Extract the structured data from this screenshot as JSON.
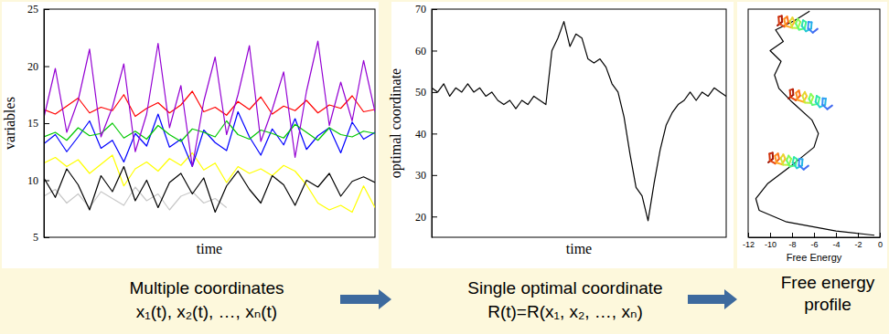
{
  "chart_data": [
    {
      "type": "line",
      "xlabel": "time",
      "ylabel": "variables",
      "tick_labels": "y",
      "x": [
        0,
        1,
        2,
        3,
        4,
        5,
        6,
        7,
        8,
        9,
        10,
        11,
        12,
        13,
        14,
        15,
        16,
        17,
        18,
        19,
        20,
        21,
        22,
        23,
        24,
        25,
        26,
        27,
        28,
        29
      ],
      "xlim": [
        0,
        29
      ],
      "ylim": [
        5,
        25
      ],
      "yticks": [
        5,
        10,
        15,
        20,
        25
      ],
      "series": [
        {
          "color": "#c8c8c8",
          "values": [
            8.6,
            9.2,
            8.0,
            8.8,
            7.6,
            9.0,
            8.4,
            7.8,
            9.4,
            8.2,
            8.8,
            7.4,
            8.6,
            9.0,
            8.0,
            8.4,
            7.6,
            null,
            null,
            null,
            null,
            null,
            null,
            null,
            null,
            null,
            null,
            null,
            null,
            null
          ]
        },
        {
          "color": "#ffff00",
          "values": [
            11.5,
            12.0,
            11.2,
            11.8,
            10.6,
            11.4,
            12.2,
            9.5,
            11.0,
            11.6,
            10.8,
            11.9,
            11.3,
            12.4,
            10.9,
            11.5,
            9.8,
            11.2,
            10.6,
            11.0,
            10.4,
            11.3,
            10.8,
            9.6,
            8.0,
            7.4,
            7.8,
            7.2,
            9.5,
            7.6
          ]
        },
        {
          "color": "#000000",
          "values": [
            10.2,
            8.5,
            11.0,
            9.6,
            7.4,
            10.4,
            9.0,
            11.2,
            8.2,
            10.0,
            7.6,
            9.8,
            10.6,
            8.8,
            10.2,
            7.2,
            9.5,
            10.8,
            9.2,
            8.0,
            10.4,
            9.6,
            7.8,
            10.0,
            9.4,
            10.6,
            8.6,
            9.9,
            10.3,
            9.8
          ]
        },
        {
          "color": "#0000ff",
          "values": [
            13.2,
            14.0,
            12.5,
            13.8,
            15.2,
            12.8,
            13.5,
            11.6,
            14.1,
            13.0,
            15.8,
            12.9,
            13.6,
            11.2,
            14.4,
            13.3,
            12.6,
            16.0,
            13.8,
            12.2,
            14.5,
            13.1,
            15.4,
            12.7,
            13.9,
            14.6,
            12.4,
            15.1,
            13.6,
            14.2
          ]
        },
        {
          "color": "#00c800",
          "values": [
            13.8,
            14.2,
            13.5,
            14.6,
            13.9,
            14.1,
            15.0,
            13.7,
            14.3,
            13.6,
            14.8,
            14.0,
            13.4,
            14.5,
            14.2,
            13.8,
            15.2,
            14.0,
            13.6,
            14.4,
            14.1,
            13.7,
            14.9,
            14.2,
            13.5,
            14.6,
            14.0,
            13.8,
            14.3,
            14.1
          ]
        },
        {
          "color": "#ff0000",
          "values": [
            16.2,
            15.8,
            16.5,
            17.2,
            15.9,
            16.4,
            16.1,
            17.5,
            15.6,
            16.3,
            16.8,
            15.9,
            16.6,
            17.8,
            16.0,
            16.4,
            15.7,
            16.9,
            16.2,
            17.3,
            15.8,
            16.5,
            16.1,
            17.0,
            15.9,
            16.6,
            16.3,
            17.4,
            16.0,
            16.2
          ]
        },
        {
          "color": "#9400d3",
          "values": [
            15.5,
            19.8,
            14.2,
            17.0,
            21.5,
            13.8,
            16.4,
            20.2,
            12.5,
            15.8,
            22.0,
            14.6,
            18.3,
            11.2,
            16.9,
            20.8,
            14.0,
            17.5,
            21.8,
            13.4,
            16.2,
            19.5,
            12.0,
            17.8,
            22.2,
            14.8,
            18.6,
            15.2,
            20.5,
            16.0
          ]
        }
      ]
    },
    {
      "type": "line",
      "xlabel": "time",
      "ylabel": "optimal coordinate",
      "tick_labels": "y",
      "color": "#000000",
      "x": [
        0,
        1,
        2,
        3,
        4,
        5,
        6,
        7,
        8,
        9,
        10,
        11,
        12,
        13,
        14,
        15,
        16,
        17,
        18,
        19,
        20,
        21,
        22,
        23,
        24,
        25,
        26,
        27,
        28,
        29,
        30,
        31,
        32,
        33,
        34,
        35,
        36,
        37,
        38,
        39,
        40,
        41,
        42,
        43,
        44,
        45,
        46,
        47,
        48,
        49
      ],
      "xlim": [
        0,
        49
      ],
      "ylim": [
        15,
        70
      ],
      "yticks": [
        20,
        30,
        40,
        50,
        60,
        70
      ],
      "values": [
        51,
        50,
        52,
        49,
        51,
        50,
        52,
        50,
        51,
        49,
        50,
        48,
        47,
        48,
        46,
        48,
        47,
        49,
        48,
        47,
        60,
        63,
        67,
        61,
        64,
        63,
        58,
        57,
        58,
        56,
        52,
        50,
        44,
        35,
        27,
        25,
        19,
        28,
        36,
        42,
        45,
        47,
        48,
        50,
        48,
        50,
        49,
        51,
        50,
        49
      ]
    },
    {
      "type": "line",
      "xlabel": "Free Energy",
      "tick_labels": "x",
      "color": "#000000",
      "x": [
        -6.4,
        -7.8,
        -9.5,
        -8.8,
        -10.0,
        -9.0,
        -9.6,
        -9.2,
        -8.0,
        -6.2,
        -5.6,
        -6.0,
        -8.0,
        -10.2,
        -11.3,
        -11.0,
        -8.5,
        -4.0,
        -0.5
      ],
      "values": [
        69.5,
        67.2,
        65.0,
        62.2,
        60.0,
        57.4,
        54.1,
        50.9,
        47.6,
        43.3,
        40.0,
        36.7,
        32.4,
        28.0,
        24.3,
        21.5,
        18.7,
        16.5,
        15.5
      ],
      "xlim": [
        -12,
        0
      ],
      "xticks": [
        -12,
        -10,
        -8,
        -6,
        -4,
        -2,
        0
      ],
      "ylim": [
        15,
        70
      ]
    }
  ],
  "captions": [
    {
      "lines": [
        "Multiple coordinates",
        "x₁(t), x₂(t), …, xₙ(t)"
      ]
    },
    {
      "lines": [
        "Single optimal coordinate",
        "R(t)=R(x₁, x₂, …, xₙ)"
      ]
    },
    {
      "lines": [
        "Free energy",
        "profile"
      ]
    }
  ]
}
